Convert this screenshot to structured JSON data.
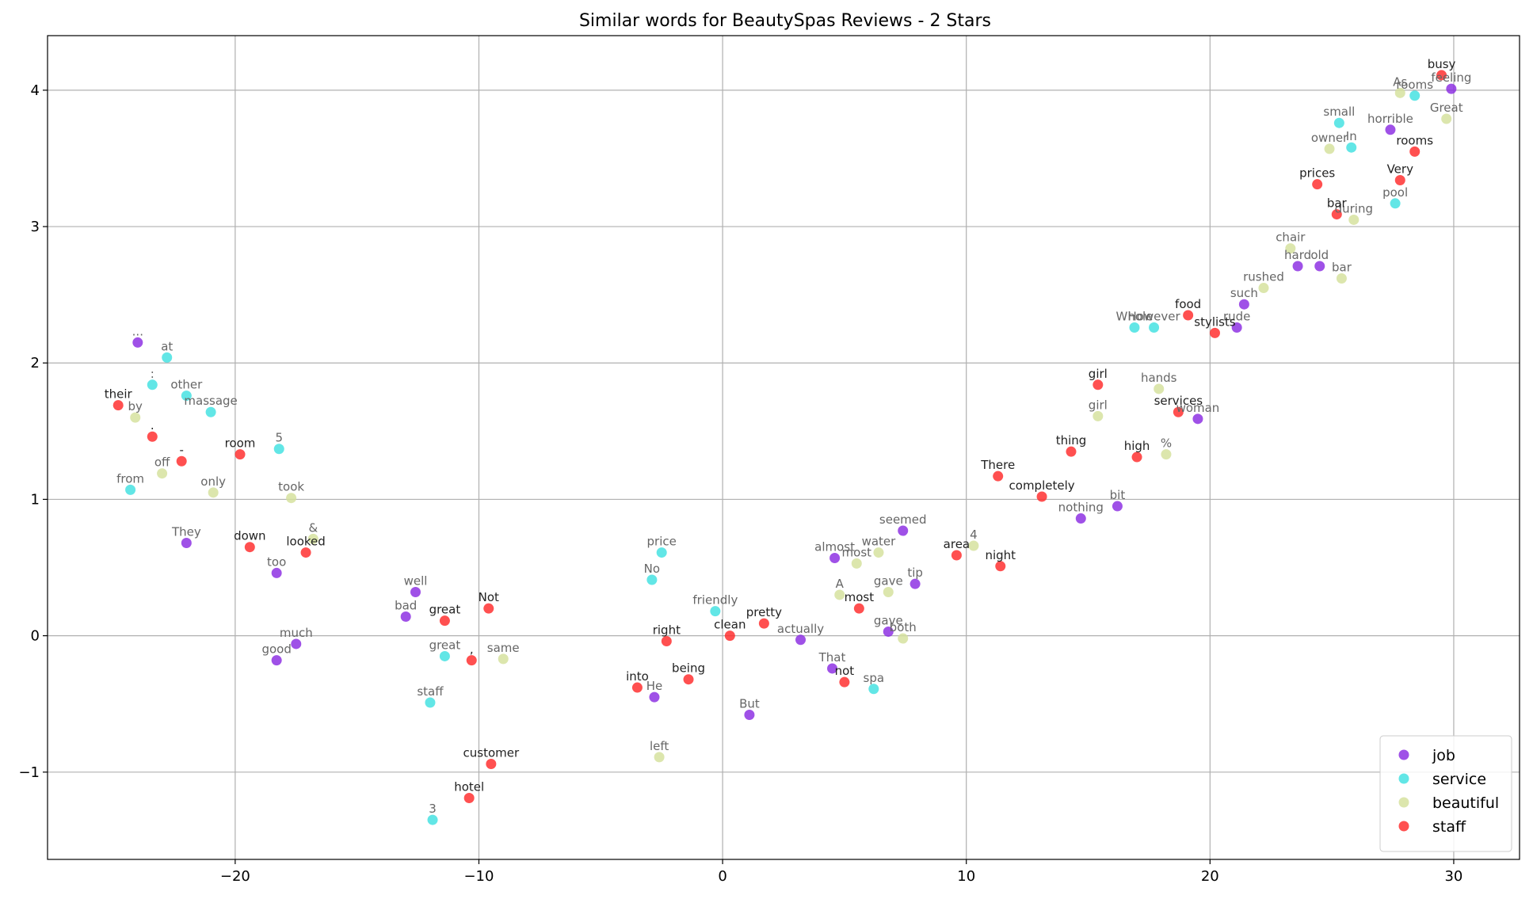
{
  "chart_data": {
    "type": "scatter",
    "title": "Similar words for BeautySpas Reviews - 2 Stars",
    "xlabel": "",
    "ylabel": "",
    "xlim": [
      -27.7,
      32.7
    ],
    "ylim": [
      -1.64,
      4.4
    ],
    "xticks": [
      -20,
      -10,
      0,
      10,
      20,
      30
    ],
    "yticks": [
      -1,
      0,
      1,
      2,
      3,
      4
    ],
    "xtick_labels": [
      "−20",
      "−10",
      "0",
      "10",
      "20",
      "30"
    ],
    "ytick_labels": [
      "−1",
      "0",
      "1",
      "2",
      "3",
      "4"
    ],
    "grid": true,
    "legend_position": "lower-right",
    "series": [
      {
        "name": "job",
        "color": "#8a2be2",
        "points": [
          {
            "x": -24.0,
            "y": 2.15,
            "label": "..."
          },
          {
            "x": -22.0,
            "y": 0.68,
            "label": "They"
          },
          {
            "x": -18.3,
            "y": 0.46,
            "label": "too"
          },
          {
            "x": -12.6,
            "y": 0.32,
            "label": "well"
          },
          {
            "x": -13.0,
            "y": 0.14,
            "label": "bad"
          },
          {
            "x": -17.5,
            "y": -0.06,
            "label": "much"
          },
          {
            "x": -18.3,
            "y": -0.18,
            "label": "good"
          },
          {
            "x": -2.8,
            "y": -0.45,
            "label": "He"
          },
          {
            "x": 1.1,
            "y": -0.58,
            "label": "But"
          },
          {
            "x": 3.2,
            "y": -0.03,
            "label": "actually"
          },
          {
            "x": 4.5,
            "y": -0.24,
            "label": "That"
          },
          {
            "x": 4.6,
            "y": 0.57,
            "label": "almost"
          },
          {
            "x": 7.4,
            "y": 0.77,
            "label": "seemed"
          },
          {
            "x": 7.9,
            "y": 0.38,
            "label": "tip"
          },
          {
            "x": 6.8,
            "y": 0.03,
            "label": "gave"
          },
          {
            "x": 14.7,
            "y": 0.86,
            "label": "nothing"
          },
          {
            "x": 16.2,
            "y": 0.95,
            "label": "bit"
          },
          {
            "x": 19.5,
            "y": 1.59,
            "label": "woman"
          },
          {
            "x": 21.4,
            "y": 2.43,
            "label": "such"
          },
          {
            "x": 21.1,
            "y": 2.26,
            "label": "rude"
          },
          {
            "x": 23.6,
            "y": 2.71,
            "label": "hard"
          },
          {
            "x": 24.5,
            "y": 2.71,
            "label": "old"
          },
          {
            "x": 27.4,
            "y": 3.71,
            "label": "horrible"
          },
          {
            "x": 29.9,
            "y": 4.01,
            "label": "feeling"
          }
        ]
      },
      {
        "name": "service",
        "color": "#40e0e0",
        "points": [
          {
            "x": -22.8,
            "y": 2.04,
            "label": "at"
          },
          {
            "x": -23.4,
            "y": 1.84,
            "label": ":"
          },
          {
            "x": -22.0,
            "y": 1.76,
            "label": "other"
          },
          {
            "x": -21.0,
            "y": 1.64,
            "label": "massage"
          },
          {
            "x": -24.3,
            "y": 1.07,
            "label": "from"
          },
          {
            "x": -18.2,
            "y": 1.37,
            "label": "5"
          },
          {
            "x": -11.4,
            "y": -0.15,
            "label": "great"
          },
          {
            "x": -12.0,
            "y": -0.49,
            "label": "staff"
          },
          {
            "x": -11.9,
            "y": -1.35,
            "label": "3"
          },
          {
            "x": -2.5,
            "y": 0.61,
            "label": "price"
          },
          {
            "x": -2.9,
            "y": 0.41,
            "label": "No"
          },
          {
            "x": -0.3,
            "y": 0.18,
            "label": "friendly"
          },
          {
            "x": 6.2,
            "y": -0.39,
            "label": "spa"
          },
          {
            "x": 16.9,
            "y": 2.26,
            "label": "Whole"
          },
          {
            "x": 17.7,
            "y": 2.26,
            "label": "However"
          },
          {
            "x": 25.3,
            "y": 3.76,
            "label": "small"
          },
          {
            "x": 25.8,
            "y": 3.58,
            "label": "In"
          },
          {
            "x": 27.6,
            "y": 3.17,
            "label": "pool"
          },
          {
            "x": 28.4,
            "y": 3.96,
            "label": "rooms"
          }
        ]
      },
      {
        "name": "beautiful",
        "color": "#d4e09b",
        "points": [
          {
            "x": -24.1,
            "y": 1.6,
            "label": "by"
          },
          {
            "x": -23.0,
            "y": 1.19,
            "label": "off"
          },
          {
            "x": -20.9,
            "y": 1.05,
            "label": "only"
          },
          {
            "x": -17.7,
            "y": 1.01,
            "label": "took"
          },
          {
            "x": -16.8,
            "y": 0.71,
            "label": "&"
          },
          {
            "x": -9.0,
            "y": -0.17,
            "label": "same"
          },
          {
            "x": -2.6,
            "y": -0.89,
            "label": "left"
          },
          {
            "x": 4.8,
            "y": 0.3,
            "label": "A"
          },
          {
            "x": 5.5,
            "y": 0.53,
            "label": "most"
          },
          {
            "x": 6.4,
            "y": 0.61,
            "label": "water"
          },
          {
            "x": 6.8,
            "y": 0.32,
            "label": "gave"
          },
          {
            "x": 7.4,
            "y": -0.02,
            "label": "both"
          },
          {
            "x": 10.3,
            "y": 0.66,
            "label": "4"
          },
          {
            "x": 15.4,
            "y": 1.61,
            "label": "girl"
          },
          {
            "x": 17.9,
            "y": 1.81,
            "label": "hands"
          },
          {
            "x": 18.2,
            "y": 1.33,
            "label": "%"
          },
          {
            "x": 22.2,
            "y": 2.55,
            "label": "rushed"
          },
          {
            "x": 23.3,
            "y": 2.84,
            "label": "chair"
          },
          {
            "x": 25.4,
            "y": 2.62,
            "label": "bar"
          },
          {
            "x": 25.9,
            "y": 3.05,
            "label": "during"
          },
          {
            "x": 24.9,
            "y": 3.57,
            "label": "owner"
          },
          {
            "x": 27.8,
            "y": 3.98,
            "label": "As"
          },
          {
            "x": 29.7,
            "y": 3.79,
            "label": "Great"
          }
        ]
      },
      {
        "name": "staff",
        "color": "#ff2a2a",
        "points": [
          {
            "x": -24.8,
            "y": 1.69,
            "label": "their"
          },
          {
            "x": -23.4,
            "y": 1.46,
            "label": "."
          },
          {
            "x": -22.2,
            "y": 1.28,
            "label": "-"
          },
          {
            "x": -19.8,
            "y": 1.33,
            "label": "room"
          },
          {
            "x": -19.4,
            "y": 0.65,
            "label": "down"
          },
          {
            "x": -17.1,
            "y": 0.61,
            "label": "looked"
          },
          {
            "x": -11.4,
            "y": 0.11,
            "label": "great"
          },
          {
            "x": -9.6,
            "y": 0.2,
            "label": "Not"
          },
          {
            "x": -10.3,
            "y": -0.18,
            "label": ","
          },
          {
            "x": -9.5,
            "y": -0.94,
            "label": "customer"
          },
          {
            "x": -10.4,
            "y": -1.19,
            "label": "hotel"
          },
          {
            "x": -3.5,
            "y": -0.38,
            "label": "into"
          },
          {
            "x": -1.4,
            "y": -0.32,
            "label": "being"
          },
          {
            "x": -2.3,
            "y": -0.04,
            "label": "right"
          },
          {
            "x": 0.3,
            "y": 0.0,
            "label": "clean"
          },
          {
            "x": 1.7,
            "y": 0.09,
            "label": "pretty"
          },
          {
            "x": 5.0,
            "y": -0.34,
            "label": "not"
          },
          {
            "x": 5.6,
            "y": 0.2,
            "label": "most"
          },
          {
            "x": 9.6,
            "y": 0.59,
            "label": "area"
          },
          {
            "x": 11.4,
            "y": 0.51,
            "label": "night"
          },
          {
            "x": 11.3,
            "y": 1.17,
            "label": "There"
          },
          {
            "x": 13.1,
            "y": 1.02,
            "label": "completely"
          },
          {
            "x": 14.3,
            "y": 1.35,
            "label": "thing"
          },
          {
            "x": 15.4,
            "y": 1.84,
            "label": "girl"
          },
          {
            "x": 17.0,
            "y": 1.31,
            "label": "high"
          },
          {
            "x": 18.7,
            "y": 1.64,
            "label": "services"
          },
          {
            "x": 19.1,
            "y": 2.35,
            "label": "food"
          },
          {
            "x": 20.2,
            "y": 2.22,
            "label": "stylists"
          },
          {
            "x": 24.4,
            "y": 3.31,
            "label": "prices"
          },
          {
            "x": 25.2,
            "y": 3.09,
            "label": "bar"
          },
          {
            "x": 27.8,
            "y": 3.34,
            "label": "Very"
          },
          {
            "x": 28.4,
            "y": 3.55,
            "label": "rooms"
          },
          {
            "x": 29.5,
            "y": 4.11,
            "label": "busy"
          }
        ]
      }
    ]
  }
}
